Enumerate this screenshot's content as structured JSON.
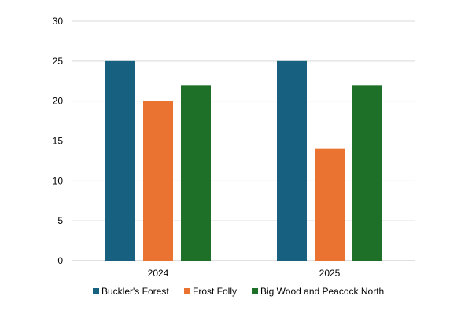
{
  "chart_data": {
    "type": "bar",
    "categories": [
      "2024",
      "2025"
    ],
    "series": [
      {
        "name": "Buckler's Forest",
        "color": "#17607f",
        "values": [
          25,
          25
        ]
      },
      {
        "name": "Frost Folly",
        "color": "#ea7331",
        "values": [
          20,
          14
        ]
      },
      {
        "name": "Big Wood and Peacock North",
        "color": "#1e6f27",
        "values": [
          22,
          22
        ]
      }
    ],
    "title": "",
    "xlabel": "",
    "ylabel": "",
    "ylim": [
      0,
      30
    ],
    "yticks": [
      0,
      5,
      10,
      15,
      20,
      25,
      30
    ],
    "grid": true,
    "legend_position": "bottom"
  }
}
